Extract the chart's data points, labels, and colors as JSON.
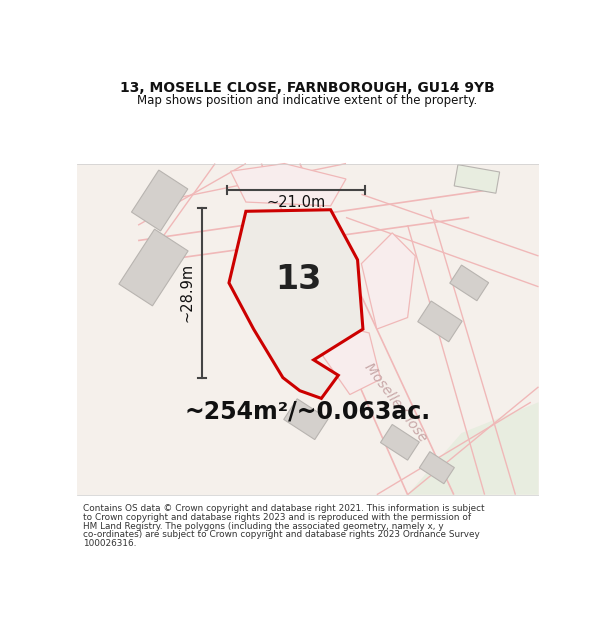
{
  "title_line1": "13, MOSELLE CLOSE, FARNBOROUGH, GU14 9YB",
  "title_line2": "Map shows position and indicative extent of the property.",
  "area_text": "~254m²/~0.063ac.",
  "dim_width": "~21.0m",
  "dim_height": "~28.9m",
  "plot_number": "13",
  "footer_lines": [
    "Contains OS data © Crown copyright and database right 2021. This information is subject",
    "to Crown copyright and database rights 2023 and is reproduced with the permission of",
    "HM Land Registry. The polygons (including the associated geometry, namely x, y",
    "co-ordinates) are subject to Crown copyright and database rights 2023 Ordnance Survey",
    "100026316."
  ],
  "background_color": "#ffffff",
  "map_bg_color": "#f5f0eb",
  "road_color": "#f0b8b8",
  "building_color": "#d4d0cc",
  "building_edge": "#b8b4b0",
  "plot_fill": "#eeebe6",
  "red_outline": "#cc0000",
  "dim_color": "#444444",
  "title_color": "#111111",
  "street_label_color": "#c8a8a8",
  "street_label": "Moselle Close",
  "green_area_color": "#e8ede0"
}
